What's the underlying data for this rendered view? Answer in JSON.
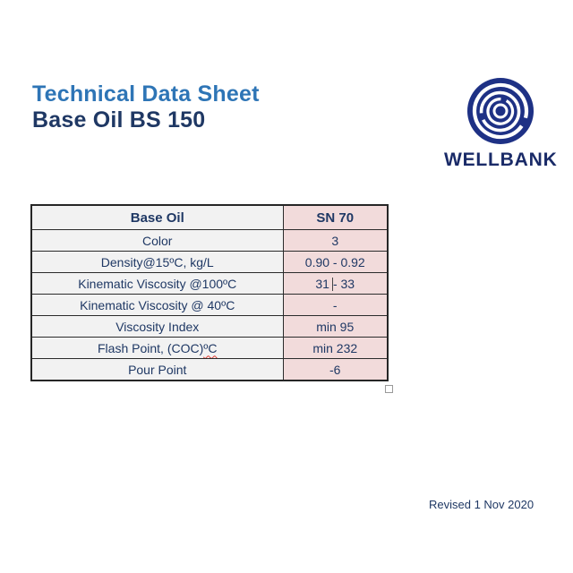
{
  "document": {
    "title_line1": "Technical Data Sheet",
    "title_line2": "Base Oil BS 150",
    "revised": "Revised 1 Nov 2020"
  },
  "logo": {
    "brand": "WELLBANK",
    "icon": "concentric-ripple-circle-icon",
    "icon_color": "#1E3185",
    "text_color": "#1A2B68"
  },
  "colors": {
    "title_blue": "#2E75B6",
    "navy_text": "#1F3864",
    "property_cell_bg": "#F2F2F2",
    "value_cell_bg": "#F2DBDB",
    "table_border": "#262626",
    "spellcheck_red": "#E03C31"
  },
  "table": {
    "header": {
      "property": "Base Oil",
      "value": "SN 70"
    },
    "rows": [
      {
        "property": "Color",
        "value": "3"
      },
      {
        "property": "Density@15ºC, kg/L",
        "value": "0.90 - 0.92"
      },
      {
        "property": "Kinematic Viscosity @100ºC",
        "value": "31 - 33",
        "value_before_caret": "31",
        "value_after_caret": "- 33",
        "caret": true
      },
      {
        "property": "Kinematic Viscosity @ 40ºC",
        "value": "-"
      },
      {
        "property": "Viscosity Index",
        "value": "min 95"
      },
      {
        "property": "Flash Point, (COC)",
        "property_squiggle": "ºC",
        "value": "min 232"
      },
      {
        "property": "Pour Point",
        "value": "-6"
      }
    ]
  }
}
